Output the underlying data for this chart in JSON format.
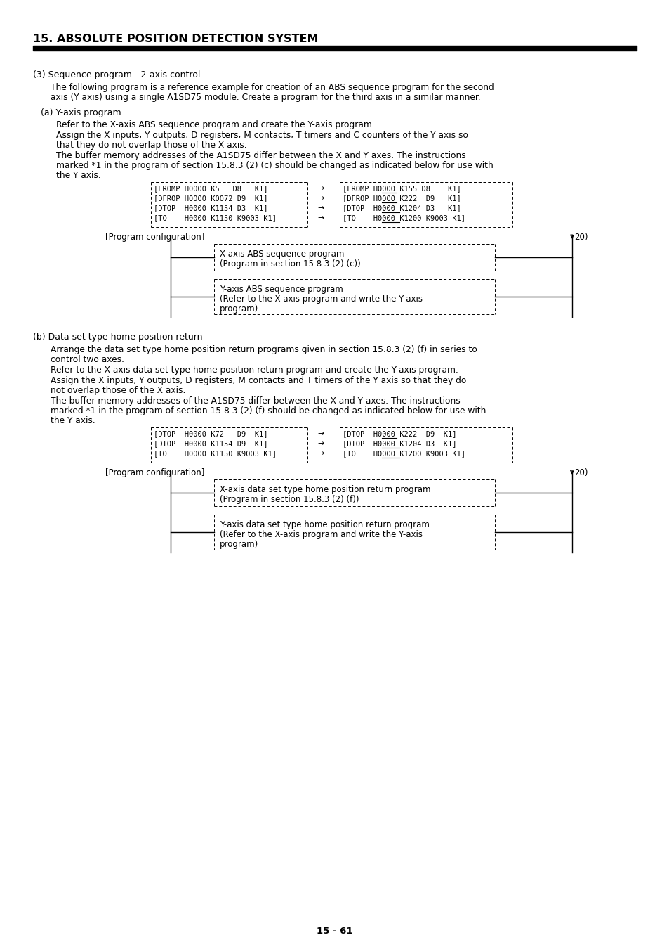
{
  "title": "15. ABSOLUTE POSITION DETECTION SYSTEM",
  "page_number": "15 - 61",
  "bg_color": "#ffffff",
  "text_color": "#000000",
  "section3_title": "(3) Sequence program - 2-axis control",
  "section3_para1a": "The following program is a reference example for creation of an ABS sequence program for the second",
  "section3_para1b": "axis (Y axis) using a single A1SD75 module. Create a program for the third axis in a similar manner.",
  "section_a_title": "(a) Y-axis program",
  "section_a_para1": "Refer to the X-axis ABS sequence program and create the Y-axis program.",
  "section_a_para2a": "Assign the X inputs, Y outputs, D registers, M contacts, T timers and C counters of the Y axis so",
  "section_a_para2b": "that they do not overlap those of the X axis.",
  "section_a_para3a": "The buffer memory addresses of the A1SD75 differ between the X and Y axes. The instructions",
  "section_a_para3b": "marked *1 in the program of section 15.8.3 (2) (c) should be changed as indicated below for use with",
  "section_a_para3c": "the Y axis.",
  "table1_left": [
    "[FROMP H0000 K5   D8   K1]",
    "[DFROP H0000 K0072 D9  K1]",
    "[DTOP  H0000 K1154 D3  K1]",
    "[TO    H0000 K1150 K9003 K1]"
  ],
  "table1_right": [
    "[FROMP H0000 K155 D8    K1]",
    "[DFROP H0000 K222  D9   K1]",
    "[DTOP  H0000 K1204 D3   K1]",
    "[TO    H0000 K1200 K9003 K1]"
  ],
  "table1_underline_words": [
    "K155",
    "K222",
    "K1204",
    "K1200"
  ],
  "prog_config_label": "[Program configuration]",
  "twenty_label": "20)",
  "box1_lines": [
    "X-axis ABS sequence program",
    "(Program in section 15.8.3 (2) (c))"
  ],
  "box2_lines": [
    "Y-axis ABS sequence program",
    "(Refer to the X-axis program and write the Y-axis",
    "program)"
  ],
  "section_b_title": "(b) Data set type home position return",
  "section_b_para1a": "Arrange the data set type home position return programs given in section 15.8.3 (2) (f) in series to",
  "section_b_para1b": "control two axes.",
  "section_b_para2": "Refer to the X-axis data set type home position return program and create the Y-axis program.",
  "section_b_para3a": "Assign the X inputs, Y outputs, D registers, M contacts and T timers of the Y axis so that they do",
  "section_b_para3b": "not overlap those of the X axis.",
  "section_b_para4a": "The buffer memory addresses of the A1SD75 differ between the X and Y axes. The instructions",
  "section_b_para4b": "marked *1 in the program of section 15.8.3 (2) (f) should be changed as indicated below for use with",
  "section_b_para4c": "the Y axis.",
  "table2_left": [
    "[DTOP  H0000 K72   D9  K1]",
    "[DTOP  H0000 K1154 D9  K1]",
    "[TO    H0000 K1150 K9003 K1]"
  ],
  "table2_right": [
    "[DTOP  H0000 K222  D9  K1]",
    "[DTOP  H0000 K1204 D3  K1]",
    "[TO    H0000 K1200 K9003 K1]"
  ],
  "table2_underline_words": [
    "K222",
    "K1204",
    "K1200"
  ],
  "box3_lines": [
    "X-axis data set type home position return program",
    "(Program in section 15.8.3 (2) (f))"
  ],
  "box4_lines": [
    "Y-axis data set type home position return program",
    "(Refer to the X-axis program and write the Y-axis",
    "program)"
  ]
}
